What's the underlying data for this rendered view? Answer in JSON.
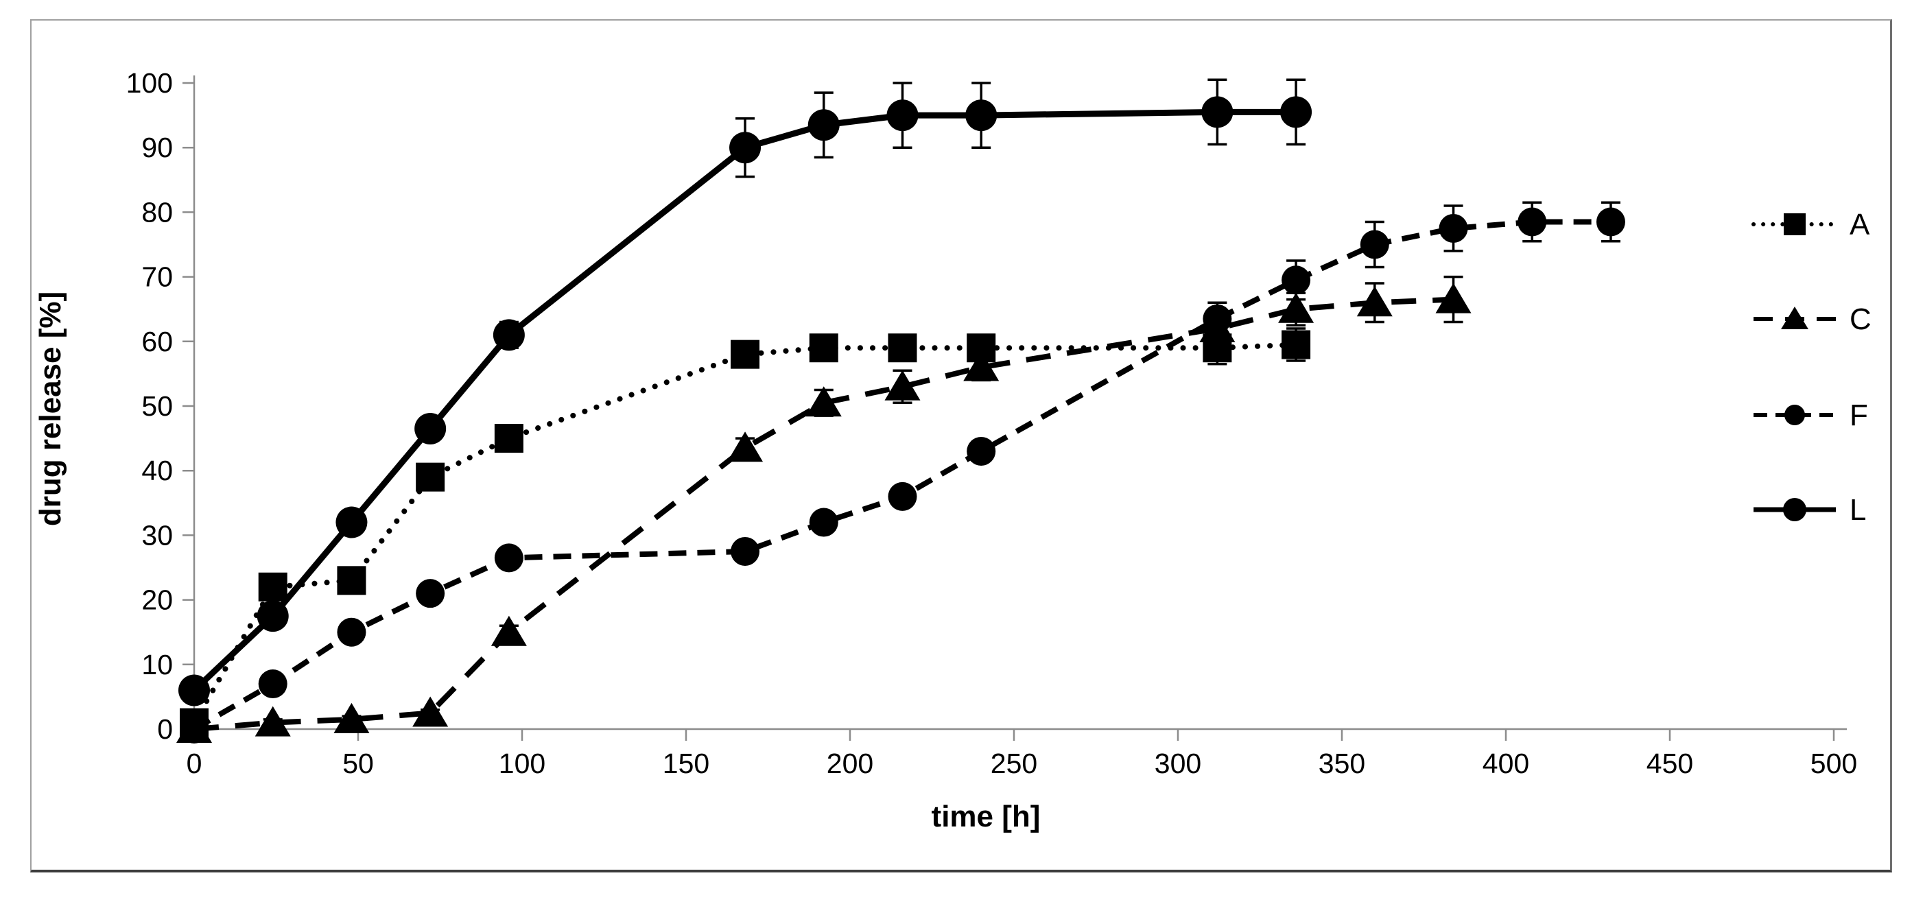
{
  "figure": {
    "background": "#ffffff",
    "frame_border_color": "#8c8c8c",
    "axis_color": "#8c8c8c",
    "text_color": "#000000",
    "series_color": "#000000"
  },
  "chart_data": {
    "type": "line",
    "title": "",
    "xlabel": "time [h]",
    "ylabel": "drug release [%]",
    "xlim": [
      0,
      500
    ],
    "ylim": [
      0,
      100
    ],
    "x_ticks": [
      0,
      50,
      100,
      150,
      200,
      250,
      300,
      350,
      400,
      450,
      500
    ],
    "y_ticks": [
      0,
      10,
      20,
      30,
      40,
      50,
      60,
      70,
      80,
      90,
      100
    ],
    "grid": false,
    "legend_position": "right",
    "error_bars": true,
    "series": [
      {
        "name": "A",
        "marker": "square",
        "line": "dotted",
        "x": [
          0,
          24,
          48,
          72,
          96,
          168,
          192,
          216,
          240,
          312,
          336
        ],
        "y": [
          1,
          22,
          23,
          39,
          45,
          58,
          59,
          59,
          59,
          59,
          59.5
        ],
        "yerr": [
          0.8,
          1,
          1,
          1,
          1,
          2,
          2,
          2,
          2,
          2.5,
          2.5
        ]
      },
      {
        "name": "C",
        "marker": "triangle",
        "line": "long-dash",
        "x": [
          0,
          24,
          48,
          72,
          96,
          168,
          192,
          216,
          240,
          312,
          336,
          360,
          384
        ],
        "y": [
          0,
          1,
          1.5,
          2.5,
          15,
          43.5,
          50.5,
          53,
          56,
          62,
          65,
          66,
          66.5
        ],
        "yerr": [
          0.5,
          0.5,
          0.5,
          0.5,
          1,
          1.5,
          2,
          2.5,
          2,
          2,
          2.5,
          3,
          3.5
        ]
      },
      {
        "name": "F",
        "marker": "circle-small",
        "line": "dash",
        "x": [
          0,
          24,
          48,
          72,
          96,
          168,
          192,
          216,
          240,
          312,
          336,
          360,
          384,
          408,
          432
        ],
        "y": [
          0,
          7,
          15,
          21,
          26.5,
          27.5,
          32,
          36,
          43,
          63.5,
          69.5,
          75,
          77.5,
          78.5,
          78.5
        ],
        "yerr": [
          0.5,
          1,
          1,
          1,
          1,
          1,
          1,
          1,
          1.5,
          2.5,
          3,
          3.5,
          3.5,
          3,
          3
        ]
      },
      {
        "name": "L",
        "marker": "circle",
        "line": "solid",
        "x": [
          0,
          24,
          48,
          72,
          96,
          168,
          192,
          216,
          240,
          312,
          336
        ],
        "y": [
          6,
          17.5,
          32,
          46.5,
          61,
          90,
          93.5,
          95,
          95,
          95.5,
          95.5
        ],
        "yerr": [
          0.5,
          1,
          1.5,
          1.5,
          2,
          4.5,
          5,
          5,
          5,
          5,
          5
        ]
      }
    ]
  }
}
